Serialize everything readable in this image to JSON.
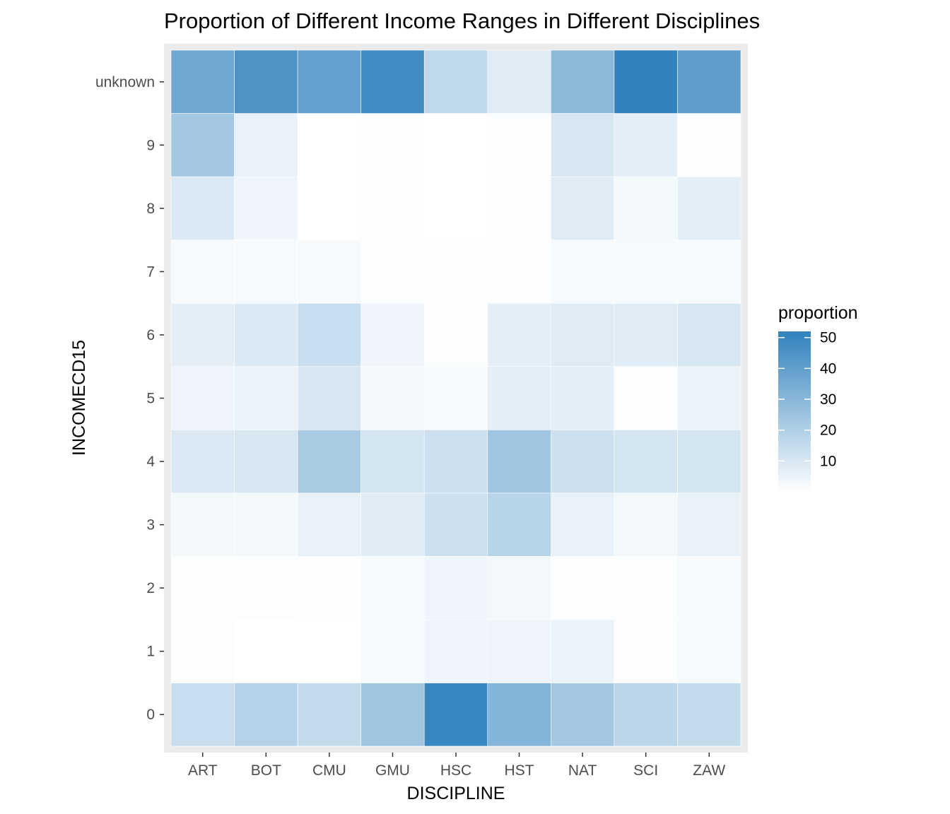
{
  "chart_data": {
    "type": "heatmap",
    "title": "Proportion of Different Income Ranges in Different Disciplines",
    "xlabel": "DISCIPLINE",
    "ylabel": "INCOMECD15",
    "x_categories": [
      "ART",
      "BOT",
      "CMU",
      "GMU",
      "HSC",
      "HST",
      "NAT",
      "SCI",
      "ZAW"
    ],
    "y_categories": [
      "0",
      "1",
      "2",
      "3",
      "4",
      "5",
      "6",
      "7",
      "8",
      "9",
      "unknown"
    ],
    "legend": {
      "title": "proportion",
      "breaks": [
        10,
        20,
        30,
        40,
        50
      ],
      "range": [
        0,
        52
      ],
      "low_color": "#ffffff",
      "high_color": "#3182bd",
      "position": "right"
    },
    "values": {
      "ART": [
        14,
        1,
        0.5,
        3,
        9,
        4,
        7,
        2,
        9,
        23,
        36
      ],
      "BOT": [
        19,
        0,
        1,
        3,
        10,
        5,
        9,
        2,
        4,
        6,
        45
      ],
      "CMU": [
        15,
        0,
        0.5,
        6,
        22,
        10,
        14,
        2,
        0,
        0,
        39
      ],
      "GMU": [
        24,
        2,
        2,
        8,
        11,
        3,
        4,
        0.5,
        0.5,
        1,
        48
      ],
      "HSC": [
        50,
        4,
        4,
        13,
        13,
        2,
        1,
        0.5,
        0,
        0,
        16
      ],
      "HST": [
        31,
        4,
        3,
        18,
        24,
        7,
        7,
        1,
        1,
        1,
        8
      ],
      "NAT": [
        23,
        5,
        1,
        6,
        13,
        7,
        8,
        2,
        8,
        10,
        29
      ],
      "SCI": [
        17,
        1,
        1,
        3,
        11,
        1,
        8,
        2,
        3,
        7,
        52
      ],
      "ZAW": [
        15,
        2,
        2,
        6,
        11,
        5,
        10,
        2,
        7,
        1,
        41
      ]
    }
  }
}
